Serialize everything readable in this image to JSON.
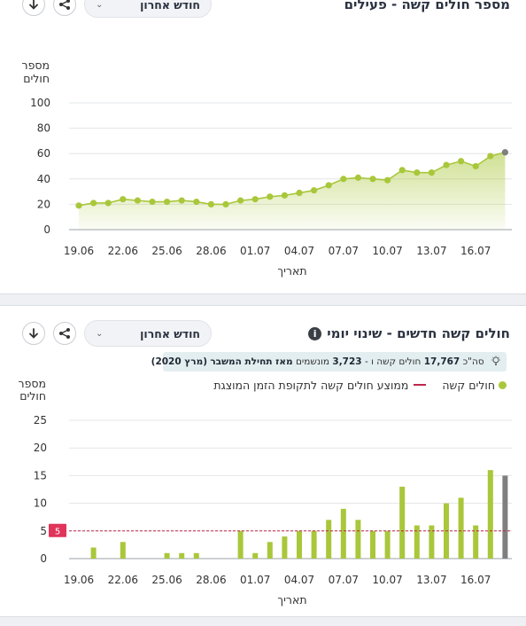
{
  "charts": {
    "active": {
      "title": "מספר חולים קשה - פעילים",
      "period_select": "חודש אחרון",
      "y_title_1": "מספר",
      "y_title_2": "חולים",
      "x_title": "תאריך"
    },
    "new": {
      "title": "חולים קשה חדשים - שינוי יומי",
      "period_select": "חודש אחרון",
      "info_icon": "i",
      "summary_prefix": "סה\"כ",
      "summary_total": "17,767",
      "summary_mid": "חולים קשה ו -",
      "summary_ventilated": "3,723",
      "summary_mid2": "מונשמים",
      "summary_since": "מאז תחילת המשבר",
      "summary_paren": "(מרץ 2020)",
      "legend_series": "חולים קשה",
      "legend_avg": "ממוצע חולים קשה לתקופת הזמן המוצגת",
      "avg_value_label": "5",
      "y_title_1": "מספר",
      "y_title_2": "חולים",
      "x_title": "תאריך"
    }
  },
  "icons": [
    "download-icon",
    "share-icon",
    "chevron-down-icon",
    "info-icon",
    "lightbulb-icon"
  ],
  "colors": {
    "series": "#a9c73a",
    "fill": "#d4e5a2",
    "last": "#7f7f7f",
    "avg": "#c0264b"
  },
  "chart_data": [
    {
      "type": "area",
      "title": "מספר חולים קשה - פעילים",
      "xlabel": "תאריך",
      "ylabel": "מספר חולים",
      "ylim": [
        0,
        100
      ],
      "yticks": [
        0,
        20,
        40,
        60,
        80,
        100
      ],
      "x_tick_labels": [
        "19.06",
        "22.06",
        "25.06",
        "28.06",
        "01.07",
        "04.07",
        "07.07",
        "10.07",
        "13.07",
        "16.07"
      ],
      "x": [
        "19.06",
        "20.06",
        "21.06",
        "22.06",
        "23.06",
        "24.06",
        "25.06",
        "26.06",
        "27.06",
        "28.06",
        "29.06",
        "30.06",
        "01.07",
        "02.07",
        "03.07",
        "04.07",
        "05.07",
        "06.07",
        "07.07",
        "08.07",
        "09.07",
        "10.07",
        "11.07",
        "12.07",
        "13.07",
        "14.07",
        "15.07",
        "16.07",
        "17.07",
        "18.07"
      ],
      "values": [
        19,
        21,
        21,
        24,
        23,
        22,
        22,
        23,
        22,
        20,
        20,
        23,
        24,
        26,
        27,
        29,
        31,
        35,
        40,
        41,
        40,
        39,
        47,
        45,
        45,
        51,
        54,
        50,
        58,
        61
      ],
      "grid": true
    },
    {
      "type": "bar",
      "title": "חולים קשה חדשים - שינוי יומי",
      "xlabel": "תאריך",
      "ylabel": "מספר חולים",
      "ylim": [
        0,
        25
      ],
      "yticks": [
        0,
        5,
        10,
        15,
        20,
        25
      ],
      "x_tick_labels": [
        "19.06",
        "22.06",
        "25.06",
        "28.06",
        "01.07",
        "04.07",
        "07.07",
        "10.07",
        "13.07",
        "16.07"
      ],
      "x": [
        "19.06",
        "20.06",
        "21.06",
        "22.06",
        "23.06",
        "24.06",
        "25.06",
        "26.06",
        "27.06",
        "28.06",
        "29.06",
        "30.06",
        "01.07",
        "02.07",
        "03.07",
        "04.07",
        "05.07",
        "06.07",
        "07.07",
        "08.07",
        "09.07",
        "10.07",
        "11.07",
        "12.07",
        "13.07",
        "14.07",
        "15.07",
        "16.07",
        "17.07",
        "18.07"
      ],
      "values": [
        0,
        2,
        0,
        3,
        0,
        0,
        1,
        1,
        1,
        0,
        0,
        5,
        1,
        3,
        4,
        5,
        5,
        7,
        9,
        7,
        5,
        5,
        13,
        6,
        6,
        10,
        11,
        6,
        16,
        15
      ],
      "average": 5,
      "series": [
        {
          "name": "חולים קשה"
        }
      ],
      "grid": true
    }
  ]
}
